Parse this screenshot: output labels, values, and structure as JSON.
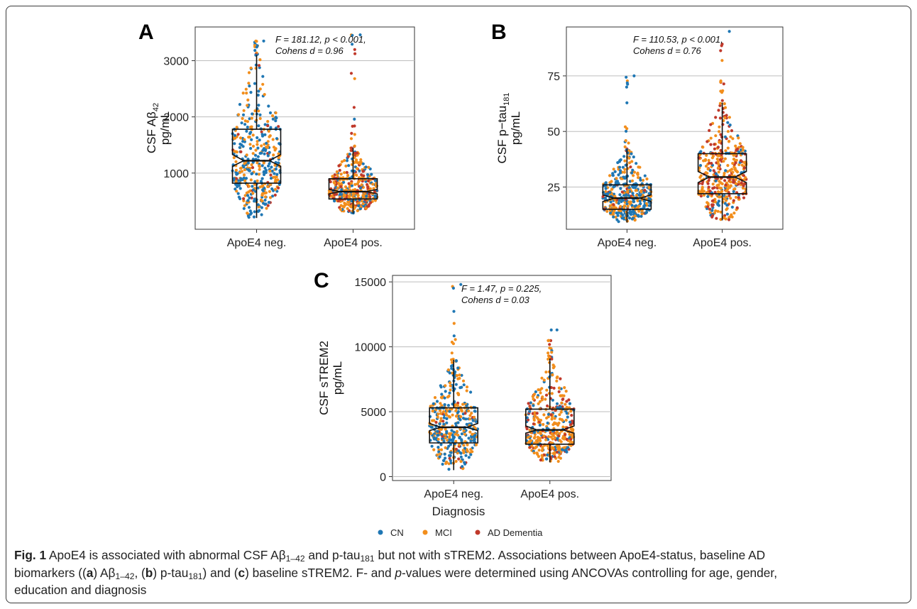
{
  "chart_data": [
    {
      "panel": "A",
      "type": "scatter",
      "subtype": "beeswarm with notched boxplot",
      "annotation_line1": "F = 181.12, p < 0.001,",
      "annotation_line2": "Cohens d = 0.96",
      "ylabel_line1": "CSF Aβ",
      "ylabel_sub": "42",
      "ylabel_line2": "pg/mL",
      "categories": [
        "ApoE4 neg.",
        "ApoE4 pos."
      ],
      "ylim": [
        0,
        3600
      ],
      "yticks": [
        1000,
        2000,
        3000
      ],
      "grid": true,
      "boxes": [
        {
          "group": "ApoE4 neg.",
          "q1": 820,
          "median": 1220,
          "q3": 1780,
          "notch_low": 1120,
          "notch_high": 1330,
          "whisker_low": 200,
          "whisker_high": 3100,
          "min": 200,
          "max": 3350
        },
        {
          "group": "ApoE4 pos.",
          "q1": 540,
          "median": 670,
          "q3": 900,
          "notch_low": 630,
          "notch_high": 710,
          "whisker_low": 280,
          "whisker_high": 1450,
          "min": 280,
          "max": 3460
        }
      ],
      "swarm_colors": {
        "ApoE4 neg.": {
          "CN": 0.55,
          "MCI": 0.4,
          "AD Dementia": 0.05
        },
        "ApoE4 pos.": {
          "CN": 0.2,
          "MCI": 0.55,
          "AD Dementia": 0.25
        }
      }
    },
    {
      "panel": "B",
      "type": "scatter",
      "subtype": "beeswarm with notched boxplot",
      "annotation_line1": "F = 110.53, p < 0.001,",
      "annotation_line2": "Cohens d = 0.76",
      "ylabel_line1": "CSF p−tau",
      "ylabel_sub": "181",
      "ylabel_line2": "pg/mL",
      "categories": [
        "ApoE4 neg.",
        "ApoE4 pos."
      ],
      "ylim": [
        6,
        97
      ],
      "yticks": [
        25,
        50,
        75
      ],
      "grid": true,
      "boxes": [
        {
          "group": "ApoE4 neg.",
          "q1": 15,
          "median": 20,
          "q3": 26,
          "notch_low": 18.5,
          "notch_high": 21.5,
          "whisker_low": 9,
          "whisker_high": 42,
          "min": 8,
          "max": 75
        },
        {
          "group": "ApoE4 pos.",
          "q1": 22,
          "median": 29.5,
          "q3": 40,
          "notch_low": 27,
          "notch_high": 32,
          "whisker_low": 10,
          "whisker_high": 63,
          "min": 9,
          "max": 95
        }
      ],
      "swarm_colors": {
        "ApoE4 neg.": {
          "CN": 0.55,
          "MCI": 0.4,
          "AD Dementia": 0.05
        },
        "ApoE4 pos.": {
          "CN": 0.15,
          "MCI": 0.55,
          "AD Dementia": 0.3
        }
      }
    },
    {
      "panel": "C",
      "type": "scatter",
      "subtype": "beeswarm with notched boxplot",
      "annotation_line1": "F = 1.47, p = 0.225,",
      "annotation_line2": "Cohens d = 0.03",
      "ylabel_line1": "CSF sTREM2",
      "ylabel_sub": "",
      "ylabel_line2": "pg/mL",
      "categories": [
        "ApoE4 neg.",
        "ApoE4 pos."
      ],
      "ylim": [
        -300,
        15500
      ],
      "yticks": [
        0,
        5000,
        10000,
        15000
      ],
      "grid": true,
      "boxes": [
        {
          "group": "ApoE4 neg.",
          "q1": 2600,
          "median": 3800,
          "q3": 5300,
          "notch_low": 3550,
          "notch_high": 4100,
          "whisker_low": 500,
          "whisker_high": 9000,
          "min": 500,
          "max": 14800
        },
        {
          "group": "ApoE4 pos.",
          "q1": 2500,
          "median": 3600,
          "q3": 5200,
          "notch_low": 3350,
          "notch_high": 3900,
          "whisker_low": 1100,
          "whisker_high": 9100,
          "min": 1000,
          "max": 11300
        }
      ],
      "swarm_colors": {
        "ApoE4 neg.": {
          "CN": 0.5,
          "MCI": 0.45,
          "AD Dementia": 0.05
        },
        "ApoE4 pos.": {
          "CN": 0.2,
          "MCI": 0.55,
          "AD Dementia": 0.25
        }
      }
    }
  ],
  "legend": {
    "title": "Diagnosis",
    "items": [
      {
        "label": "CN",
        "color": "#1f77b4"
      },
      {
        "label": "MCI",
        "color": "#f28e1c"
      },
      {
        "label": "AD Dementia",
        "color": "#c0392b"
      }
    ]
  },
  "caption": {
    "label": "Fig. 1",
    "title": "ApoE4 is associated with abnormal CSF Aβ",
    "t_sub1": "1–42",
    "t_mid": " and p-tau",
    "t_sub2": "181",
    "t_end": " but not with sTREM2. Associations between ApoE4-status, baseline AD",
    "line2_a": "biomarkers ((",
    "letter_a": "a",
    "line2_b": ") Aβ",
    "sub_b": "1–42",
    "line2_c": ", (",
    "letter_b": "b",
    "line2_d": ") p-tau",
    "sub_d": "181",
    "line2_e": ") and (",
    "letter_c": "c",
    "line2_f": ") baseline sTREM2. F- and ",
    "p_italic": "p",
    "line2_g": "-values were determined using ANCOVAs controlling for age, gender,",
    "line3": "education and diagnosis"
  },
  "colors": {
    "CN": "#1f77b4",
    "MCI": "#f28e1c",
    "AD Dementia": "#c0392b",
    "grid": "#bdbdbd"
  }
}
